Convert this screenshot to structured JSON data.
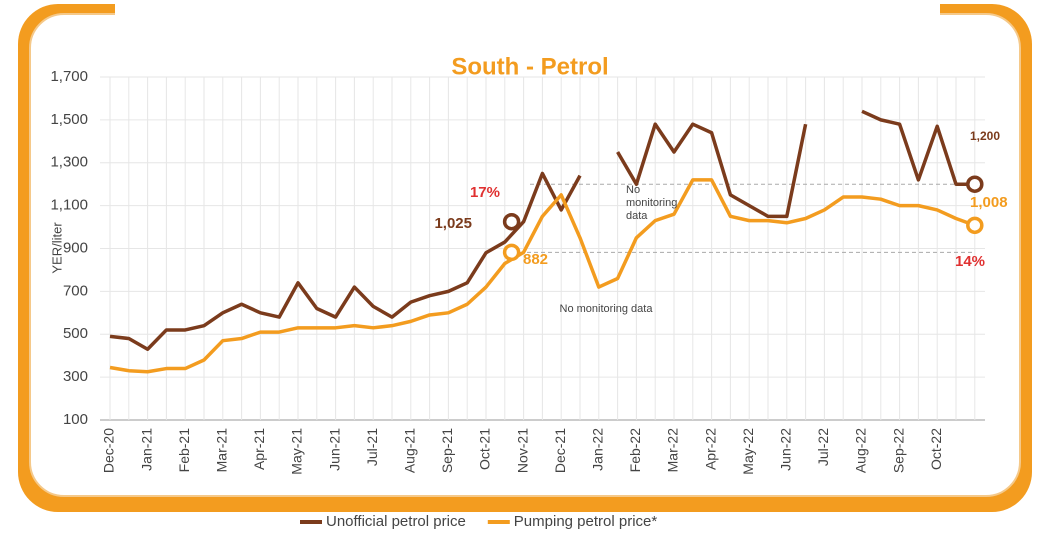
{
  "chart_data": {
    "type": "line",
    "title": "South - Petrol",
    "y_label": "YER/liter",
    "categories": [
      "Dec-20",
      null,
      "Jan-21",
      null,
      "Feb-21",
      null,
      "Mar-21",
      null,
      "Apr-21",
      null,
      "May-21",
      null,
      "Jun-21",
      null,
      "Jul-21",
      null,
      "Aug-21",
      null,
      "Sep-21",
      null,
      "Oct-21",
      null,
      "Nov-21",
      null,
      "Dec-21",
      null,
      "Jan-22",
      null,
      "Feb-22",
      null,
      "Mar-22",
      null,
      "Apr-22",
      null,
      "May-22",
      null,
      "Jun-22",
      null,
      "Jul-22",
      null,
      "Aug-22",
      null,
      "Sep-22",
      null,
      "Oct-22",
      null,
      null
    ],
    "series": [
      {
        "name": "Unofficial petrol price",
        "color": "#7b3b1c",
        "values": [
          490,
          480,
          430,
          520,
          520,
          540,
          600,
          640,
          600,
          580,
          740,
          620,
          580,
          720,
          630,
          580,
          650,
          680,
          700,
          740,
          880,
          930,
          1025,
          1250,
          1080,
          1240,
          null,
          1350,
          1200,
          1480,
          1350,
          1480,
          1440,
          1150,
          1100,
          1050,
          1050,
          1480,
          null,
          null,
          1540,
          1500,
          1480,
          1220,
          1470,
          1200,
          1200
        ]
      },
      {
        "name": "Pumping petrol price*",
        "color": "#f39c1f",
        "values": [
          345,
          330,
          325,
          340,
          340,
          380,
          470,
          480,
          510,
          510,
          530,
          530,
          530,
          540,
          530,
          540,
          560,
          590,
          600,
          640,
          720,
          830,
          882,
          1050,
          1150,
          950,
          720,
          760,
          950,
          1030,
          1060,
          1220,
          1220,
          1050,
          1030,
          1030,
          1020,
          1040,
          1080,
          1140,
          1140,
          1130,
          1100,
          1100,
          1080,
          1040,
          1008
        ]
      }
    ],
    "ylim": [
      100,
      1700
    ],
    "yticks": [
      100,
      300,
      500,
      700,
      900,
      {
        "value": 1100,
        "label": "1,100"
      },
      {
        "value": 1300,
        "label": "1,300"
      },
      {
        "value": 1500,
        "label": "1,500"
      },
      {
        "value": 1700,
        "label": "1,700"
      }
    ],
    "grid": true,
    "legend": "bottom",
    "annotations": [
      "1,025",
      "882",
      "17%",
      "1,200",
      "1,008",
      "14%",
      "No monitoring data",
      "No monitoring data"
    ]
  }
}
